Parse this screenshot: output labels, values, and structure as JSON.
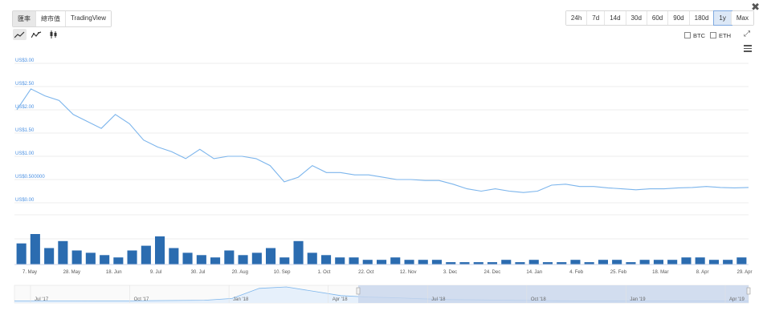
{
  "controls": {
    "view_tabs": [
      "匯率",
      "總市值",
      "TradingView"
    ],
    "active_view": 0,
    "range_tabs": [
      "24h",
      "7d",
      "14d",
      "30d",
      "60d",
      "90d",
      "180d",
      "1y",
      "Max"
    ],
    "active_range": 7,
    "chart_types": [
      {
        "icon": "line-chart-icon",
        "active": true
      },
      {
        "icon": "smooth-line-icon",
        "active": false
      },
      {
        "icon": "candlestick-icon",
        "active": false
      }
    ],
    "compare": [
      "BTC",
      "ETH"
    ],
    "close_glyph": "✖",
    "expand_glyph": "⤢"
  },
  "colors": {
    "line": "#7cb5ec",
    "bar": "#2b6cb0",
    "axis_label": "#4a90e2",
    "nav_fill": "#e6f0fb",
    "nav_selection": "#c8d6ec"
  },
  "chart_data": {
    "type": "line",
    "title": "",
    "ylabel": "",
    "ylim": [
      0,
      3.0
    ],
    "y_ticks": [
      {
        "value": 3.0,
        "label": "US$3.00"
      },
      {
        "value": 2.5,
        "label": "US$2.50"
      },
      {
        "value": 2.0,
        "label": "US$2.00"
      },
      {
        "value": 1.5,
        "label": "US$1.50"
      },
      {
        "value": 1.0,
        "label": "US$1.00"
      },
      {
        "value": 0.5,
        "label": "US$0.500000"
      },
      {
        "value": 0.0,
        "label": "US$0.00"
      }
    ],
    "x_ticks": [
      "7. May",
      "28. May",
      "18. Jun",
      "9. Jul",
      "30. Jul",
      "20. Aug",
      "10. Sep",
      "1. Oct",
      "22. Oct",
      "12. Nov",
      "3. Dec",
      "24. Dec",
      "14. Jan",
      "4. Feb",
      "25. Feb",
      "18. Mar",
      "8. Apr",
      "29. Apr"
    ],
    "grid": true,
    "legend": "none",
    "series": [
      {
        "x": [
          0,
          1,
          2,
          3,
          4,
          5,
          6,
          7,
          8,
          9,
          10,
          11,
          12,
          13,
          14,
          15,
          16,
          17,
          18,
          19,
          20,
          21,
          22,
          23,
          24,
          25,
          26,
          27,
          28,
          29,
          30,
          31,
          32,
          33,
          34,
          35,
          36,
          37,
          38,
          39,
          40,
          41,
          42,
          43,
          44,
          45,
          46,
          47,
          48,
          49,
          50,
          51,
          52
        ],
        "values": [
          2.0,
          2.45,
          2.3,
          2.2,
          1.9,
          1.75,
          1.6,
          1.9,
          1.7,
          1.35,
          1.2,
          1.1,
          0.95,
          1.15,
          0.95,
          1.0,
          1.0,
          0.95,
          0.8,
          0.45,
          0.55,
          0.8,
          0.65,
          0.65,
          0.6,
          0.6,
          0.55,
          0.5,
          0.5,
          0.48,
          0.48,
          0.4,
          0.3,
          0.25,
          0.3,
          0.25,
          0.22,
          0.25,
          0.38,
          0.4,
          0.35,
          0.35,
          0.32,
          0.3,
          0.28,
          0.3,
          0.3,
          0.32,
          0.33,
          0.35,
          0.33,
          0.32,
          0.33
        ]
      }
    ],
    "volume": [
      9,
      13,
      7,
      10,
      6,
      5,
      4,
      3,
      6,
      8,
      12,
      7,
      5,
      4,
      3,
      6,
      4,
      5,
      7,
      3,
      10,
      5,
      4,
      3,
      3,
      2,
      2,
      3,
      2,
      2,
      2,
      1,
      1,
      1,
      1,
      2,
      1,
      2,
      1,
      1,
      2,
      1,
      2,
      2,
      1,
      2,
      2,
      2,
      3,
      3,
      2,
      2,
      3
    ],
    "navigator_ticks": [
      "Jul '17",
      "Oct '17",
      "Jan '18",
      "Apr '18",
      "Jul '18",
      "Oct '18",
      "Jan '19",
      "Apr '19"
    ]
  }
}
